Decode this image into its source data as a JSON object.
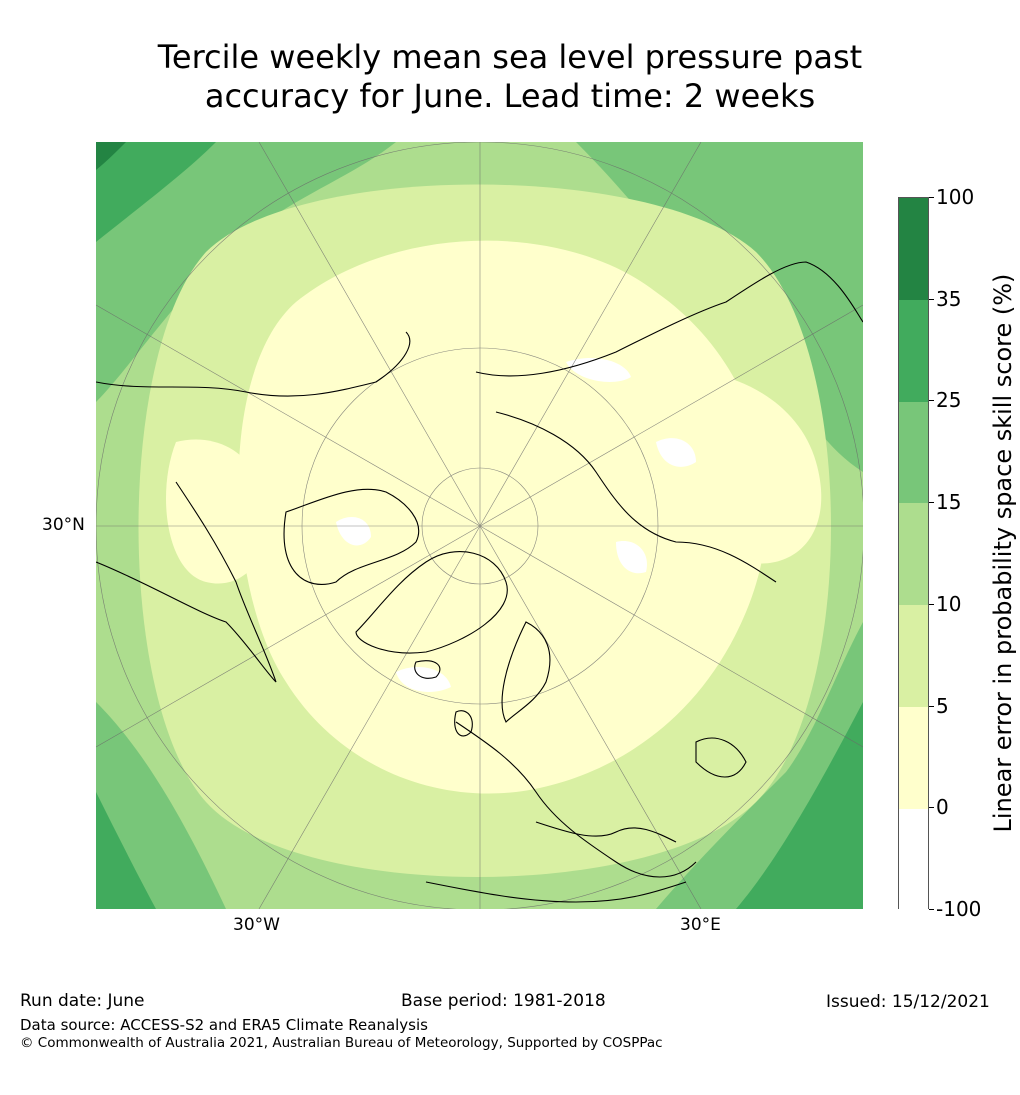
{
  "title": {
    "line1": "Tercile weekly mean sea level pressure past",
    "line2": "accuracy for June. Lead time: 2 weeks"
  },
  "map": {
    "projection": "north polar stereographic",
    "axis_labels": {
      "lat": "30°N",
      "lon_west": "30°W",
      "lon_east": "30°E"
    }
  },
  "colorbar": {
    "title": "Linear error in probability space skill score (%)",
    "bins": [
      {
        "from": "-100",
        "to": "0",
        "color": "#ffffff"
      },
      {
        "from": "0",
        "to": "5",
        "color": "#ffffcc"
      },
      {
        "from": "5",
        "to": "10",
        "color": "#d9f0a3"
      },
      {
        "from": "10",
        "to": "15",
        "color": "#addd8e"
      },
      {
        "from": "15",
        "to": "25",
        "color": "#78c679"
      },
      {
        "from": "25",
        "to": "35",
        "color": "#41ab5d"
      },
      {
        "from": "35",
        "to": "100",
        "color": "#238443"
      }
    ],
    "tick_labels": [
      "-100",
      "0",
      "5",
      "10",
      "15",
      "25",
      "35",
      "100"
    ]
  },
  "footer": {
    "run_date": "Run date: June",
    "base_period": "Base period: 1981-2018",
    "issued": "Issued: 15/12/2021",
    "data_source": "Data source: ACCESS-S2 and ERA5 Climate Reanalysis",
    "copyright": "© Commonwealth of Australia 2021, Australian Bureau of Meteorology, Supported by COSPPac"
  }
}
